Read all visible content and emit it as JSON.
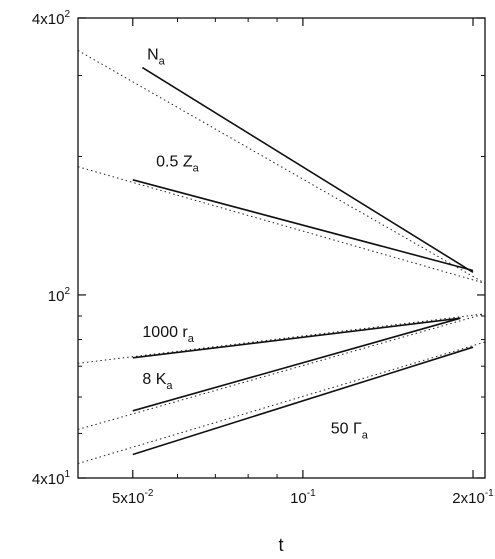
{
  "chart_data": {
    "type": "line",
    "title": "",
    "xlabel": "t",
    "ylabel": "",
    "xscale": "log",
    "yscale": "log",
    "xlim": [
      0.04,
      0.21
    ],
    "ylim": [
      40,
      400
    ],
    "grid": false,
    "legend": "none",
    "x_ticks": [
      {
        "value": 0.05,
        "base": "5x10",
        "exp": "-2"
      },
      {
        "value": 0.1,
        "base": "10",
        "exp": "-1"
      },
      {
        "value": 0.2,
        "base": "2x10",
        "exp": "-1"
      }
    ],
    "y_ticks": [
      {
        "value": 40,
        "base": "4x10",
        "exp": "1"
      },
      {
        "value": 100,
        "base": "10",
        "exp": "2"
      },
      {
        "value": 400,
        "base": "4x10",
        "exp": "2"
      }
    ],
    "series": [
      {
        "name": "N_a",
        "label_main": "N",
        "label_sub": "a",
        "label_at": [
          0.053,
          325
        ],
        "fit": {
          "x": [
            0.04,
            0.21
          ],
          "y": [
            340,
            106
          ]
        },
        "x": [
          0.052,
          0.2
        ],
        "y": [
          312,
          112
        ]
      },
      {
        "name": "0.5 Z_a",
        "label_main": "0.5 Z",
        "label_sub": "a",
        "label_at": [
          0.055,
          190
        ],
        "fit": {
          "x": [
            0.04,
            0.21
          ],
          "y": [
            190,
            106
          ]
        },
        "x": [
          0.05,
          0.2
        ],
        "y": [
          178,
          113
        ]
      },
      {
        "name": "1000 r_a",
        "label_main": "1000 r",
        "label_sub": "a",
        "label_at": [
          0.052,
          81
        ],
        "fit": {
          "x": [
            0.04,
            0.21
          ],
          "y": [
            71,
            91
          ]
        },
        "x": [
          0.05,
          0.19
        ],
        "y": [
          73,
          89
        ]
      },
      {
        "name": "8 K_a",
        "label_main": "8 K",
        "label_sub": "a",
        "label_at": [
          0.052,
          64
        ],
        "fit": {
          "x": [
            0.04,
            0.21
          ],
          "y": [
            51,
            91
          ]
        },
        "x": [
          0.05,
          0.19
        ],
        "y": [
          56,
          89
        ]
      },
      {
        "name": "50 Γ_a",
        "label_main": "50 Γ",
        "label_sub": "a",
        "label_at": [
          0.112,
          50
        ],
        "fit": {
          "x": [
            0.04,
            0.21
          ],
          "y": [
            43,
            79
          ]
        },
        "x": [
          0.05,
          0.2
        ],
        "y": [
          45,
          77
        ]
      }
    ]
  }
}
